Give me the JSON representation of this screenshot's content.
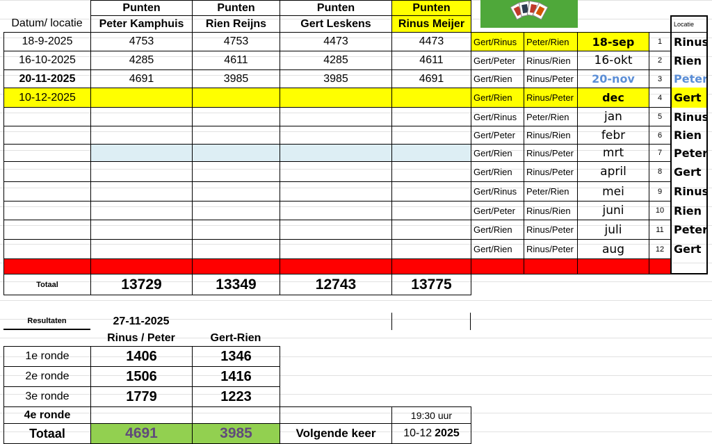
{
  "header": {
    "punten": "Punten",
    "datum_locatie": "Datum/ locatie",
    "players": [
      "Peter Kamphuis",
      "Rien Reijns",
      "Gert Leskens",
      "Rinus Meijer"
    ]
  },
  "rows": [
    {
      "date": "18-9-2025",
      "scores": [
        "4753",
        "4753",
        "4473",
        "4473"
      ]
    },
    {
      "date": "16-10-2025",
      "scores": [
        "4285",
        "4611",
        "4285",
        "4611"
      ]
    },
    {
      "date": "20-11-2025",
      "scores": [
        "4691",
        "3985",
        "3985",
        "4691"
      ],
      "bold": true
    },
    {
      "date": "10-12-2025",
      "scores": [
        "",
        "",
        "",
        ""
      ],
      "highlight": "#ffff00"
    }
  ],
  "totaal": {
    "label": "Totaal",
    "values": [
      "13729",
      "13349",
      "12743",
      "13775"
    ]
  },
  "schedule": {
    "locatie_header": "Locatie",
    "items": [
      {
        "pair1": "Gert/Rinus",
        "pair2": "Peter/Rien",
        "month": "18-sep",
        "nr": "1",
        "loc": "Rinus"
      },
      {
        "pair1": "Gert/Peter",
        "pair2": "Rinus/Rien",
        "month": "16-okt",
        "nr": "2",
        "loc": "Rien"
      },
      {
        "pair1": "Gert/Rien",
        "pair2": "Rinus/Peter",
        "month": "20-nov",
        "nr": "3",
        "loc": "Peter"
      },
      {
        "pair1": "Gert/Rien",
        "pair2": "Rinus/Peter",
        "month": "dec",
        "nr": "4",
        "loc": "Gert"
      },
      {
        "pair1": "Gert/Rinus",
        "pair2": "Peter/Rien",
        "month": "jan",
        "nr": "5",
        "loc": "Rinus"
      },
      {
        "pair1": "Gert/Peter",
        "pair2": "Rinus/Rien",
        "month": "febr",
        "nr": "6",
        "loc": "Rien"
      },
      {
        "pair1": "Gert/Rien",
        "pair2": "Rinus/Peter",
        "month": "mrt",
        "nr": "7",
        "loc": "Peter"
      },
      {
        "pair1": "Gert/Rien",
        "pair2": "Rinus/Peter",
        "month": "april",
        "nr": "8",
        "loc": "Gert"
      },
      {
        "pair1": "Gert/Rinus",
        "pair2": "Peter/Rien",
        "month": "mei",
        "nr": "9",
        "loc": "Rinus"
      },
      {
        "pair1": "Gert/Peter",
        "pair2": "Rinus/Rien",
        "month": "juni",
        "nr": "10",
        "loc": "Rien"
      },
      {
        "pair1": "Gert/Rien",
        "pair2": "Rinus/Peter",
        "month": "juli",
        "nr": "11",
        "loc": "Peter"
      },
      {
        "pair1": "Gert/Rien",
        "pair2": "Rinus/Peter",
        "month": "aug",
        "nr": "12",
        "loc": "Gert"
      }
    ]
  },
  "resultaten": {
    "label": "Resultaten",
    "date": "27-11-2025",
    "teams": [
      "Rinus / Peter",
      "Gert-Rien"
    ],
    "rondes": [
      {
        "label": "1e ronde",
        "values": [
          "1406",
          "1346"
        ]
      },
      {
        "label": "2e ronde",
        "values": [
          "1506",
          "1416"
        ]
      },
      {
        "label": "3e ronde",
        "values": [
          "1779",
          "1223"
        ]
      },
      {
        "label": "4e ronde",
        "values": [
          "",
          ""
        ]
      }
    ],
    "totaal_label": "Totaal",
    "totaal": [
      "4691",
      "3985"
    ],
    "volgende_label": "Volgende keer",
    "volgende_date": "10-12",
    "volgende_year": "2025",
    "time": "19:30 uur"
  },
  "colors": {
    "highlight": "#ffff00",
    "red_bar": "#ff0000",
    "total_green": "#92d050",
    "blue_text": "#5b8ed6"
  }
}
